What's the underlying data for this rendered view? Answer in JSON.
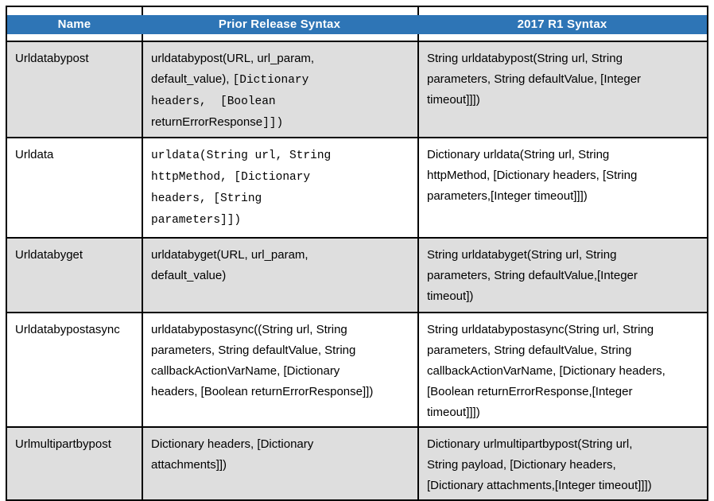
{
  "colors": {
    "header_blue": "#2E75B6",
    "alt_row_gray": "#DEDEDE",
    "border_black": "#000000",
    "header_text_white": "#FFFFFF"
  },
  "header": {
    "columns": [
      "Name",
      "Prior Release Syntax",
      "2017 R1 Syntax"
    ]
  },
  "table": {
    "rows": [
      {
        "name": "Urldatabypost",
        "prior": [
          [
            {
              "t": "urldatabypost(URL, url_param,",
              "m": false
            }
          ],
          [
            {
              "t": "default_value), ",
              "m": false
            },
            {
              "t": "[Dictionary",
              "m": true
            }
          ],
          [
            {
              "t": "headers,  [Boolean",
              "m": true
            }
          ],
          [
            {
              "t": "returnErrorResponse",
              "m": false
            },
            {
              "t": "]])",
              "m": true
            }
          ]
        ],
        "r1": [
          [
            {
              "t": "String urldatabypost(String url, String",
              "m": false
            }
          ],
          [
            {
              "t": "parameters, String defaultValue, [Integer",
              "m": false
            }
          ],
          [
            {
              "t": "timeout]]])",
              "m": false
            }
          ]
        ]
      },
      {
        "name": "Urldata",
        "prior": [
          [
            {
              "t": "urldata(String url, String",
              "m": true
            }
          ],
          [
            {
              "t": "httpMethod, [Dictionary",
              "m": true
            }
          ],
          [
            {
              "t": "headers, [String",
              "m": true
            }
          ],
          [
            {
              "t": "parameters]])",
              "m": true
            }
          ]
        ],
        "r1": [
          [
            {
              "t": "Dictionary urldata(String url, String",
              "m": false
            }
          ],
          [
            {
              "t": "httpMethod, [Dictionary headers, [String",
              "m": false
            }
          ],
          [
            {
              "t": "parameters,[Integer timeout]]])",
              "m": false
            }
          ]
        ]
      },
      {
        "name": "Urldatabyget",
        "prior": [
          [
            {
              "t": "urldatabyget(URL, url_param,",
              "m": false
            }
          ],
          [
            {
              "t": "default_value)",
              "m": false
            }
          ]
        ],
        "r1": [
          [
            {
              "t": "String urldatabyget(String url, String",
              "m": false
            }
          ],
          [
            {
              "t": "parameters, String defaultValue,[Integer",
              "m": false
            }
          ],
          [
            {
              "t": "timeout])",
              "m": false
            }
          ]
        ]
      },
      {
        "name": "Urldatabypostasync",
        "prior": [
          [
            {
              "t": "urldatabypostasync((String url, String",
              "m": false
            }
          ],
          [
            {
              "t": "parameters, String defaultValue, String",
              "m": false
            }
          ],
          [
            {
              "t": "callbackActionVarName, [Dictionary",
              "m": false
            }
          ],
          [
            {
              "t": "headers, [Boolean returnErrorResponse]])",
              "m": false
            }
          ]
        ],
        "r1": [
          [
            {
              "t": "String urldatabypostasync(String url, String",
              "m": false
            }
          ],
          [
            {
              "t": "parameters, String defaultValue, String",
              "m": false
            }
          ],
          [
            {
              "t": "callbackActionVarName, [Dictionary headers,",
              "m": false
            }
          ],
          [
            {
              "t": "[Boolean returnErrorResponse,[Integer",
              "m": false
            }
          ],
          [
            {
              "t": "timeout]]])",
              "m": false
            }
          ]
        ]
      },
      {
        "name": "Urlmultipartbypost",
        "prior": [
          [
            {
              "t": "Dictionary headers, [Dictionary",
              "m": false
            }
          ],
          [
            {
              "t": "attachments]])",
              "m": false
            }
          ]
        ],
        "r1": [
          [
            {
              "t": "Dictionary urlmultipartbypost(String url,",
              "m": false
            }
          ],
          [
            {
              "t": "String payload, [Dictionary headers,",
              "m": false
            }
          ],
          [
            {
              "t": "[Dictionary attachments,[Integer timeout]]])",
              "m": false
            }
          ]
        ]
      }
    ]
  }
}
